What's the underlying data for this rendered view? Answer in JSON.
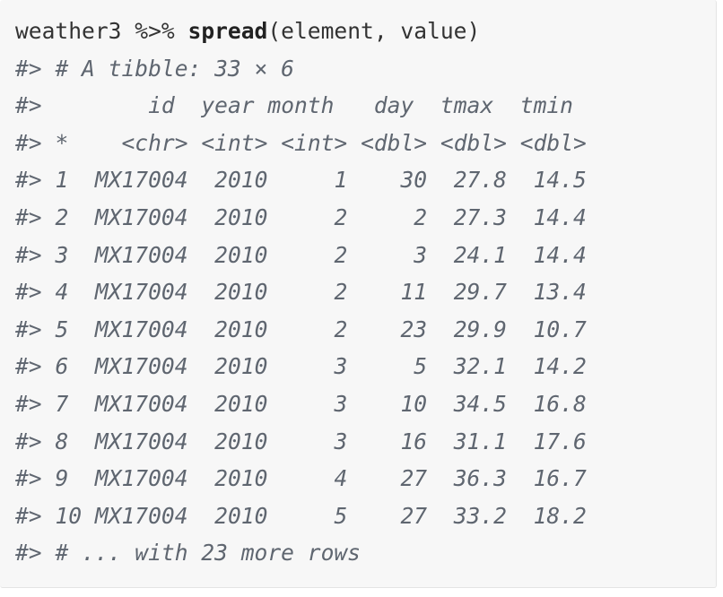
{
  "command": {
    "object": "weather3",
    "pipe": "%>%",
    "function": "spread",
    "args": "(element, value)"
  },
  "output": {
    "prefix": "#>",
    "description": "# A tibble: 33 × 6",
    "columns": [
      "id",
      "year",
      "month",
      "day",
      "tmax",
      "tmin"
    ],
    "types": [
      "<chr>",
      "<int>",
      "<int>",
      "<dbl>",
      "<dbl>",
      "<dbl>"
    ],
    "type_marker": "*",
    "rows": [
      [
        "1",
        "MX17004",
        "2010",
        "1",
        "30",
        "27.8",
        "14.5"
      ],
      [
        "2",
        "MX17004",
        "2010",
        "2",
        "2",
        "27.3",
        "14.4"
      ],
      [
        "3",
        "MX17004",
        "2010",
        "2",
        "3",
        "24.1",
        "14.4"
      ],
      [
        "4",
        "MX17004",
        "2010",
        "2",
        "11",
        "29.7",
        "13.4"
      ],
      [
        "5",
        "MX17004",
        "2010",
        "2",
        "23",
        "29.9",
        "10.7"
      ],
      [
        "6",
        "MX17004",
        "2010",
        "3",
        "5",
        "32.1",
        "14.2"
      ],
      [
        "7",
        "MX17004",
        "2010",
        "3",
        "10",
        "34.5",
        "16.8"
      ],
      [
        "8",
        "MX17004",
        "2010",
        "3",
        "16",
        "31.1",
        "17.6"
      ],
      [
        "9",
        "MX17004",
        "2010",
        "4",
        "27",
        "36.3",
        "16.7"
      ],
      [
        "10",
        "MX17004",
        "2010",
        "5",
        "27",
        "33.2",
        "18.2"
      ]
    ],
    "footer": "# ... with 23 more rows"
  }
}
